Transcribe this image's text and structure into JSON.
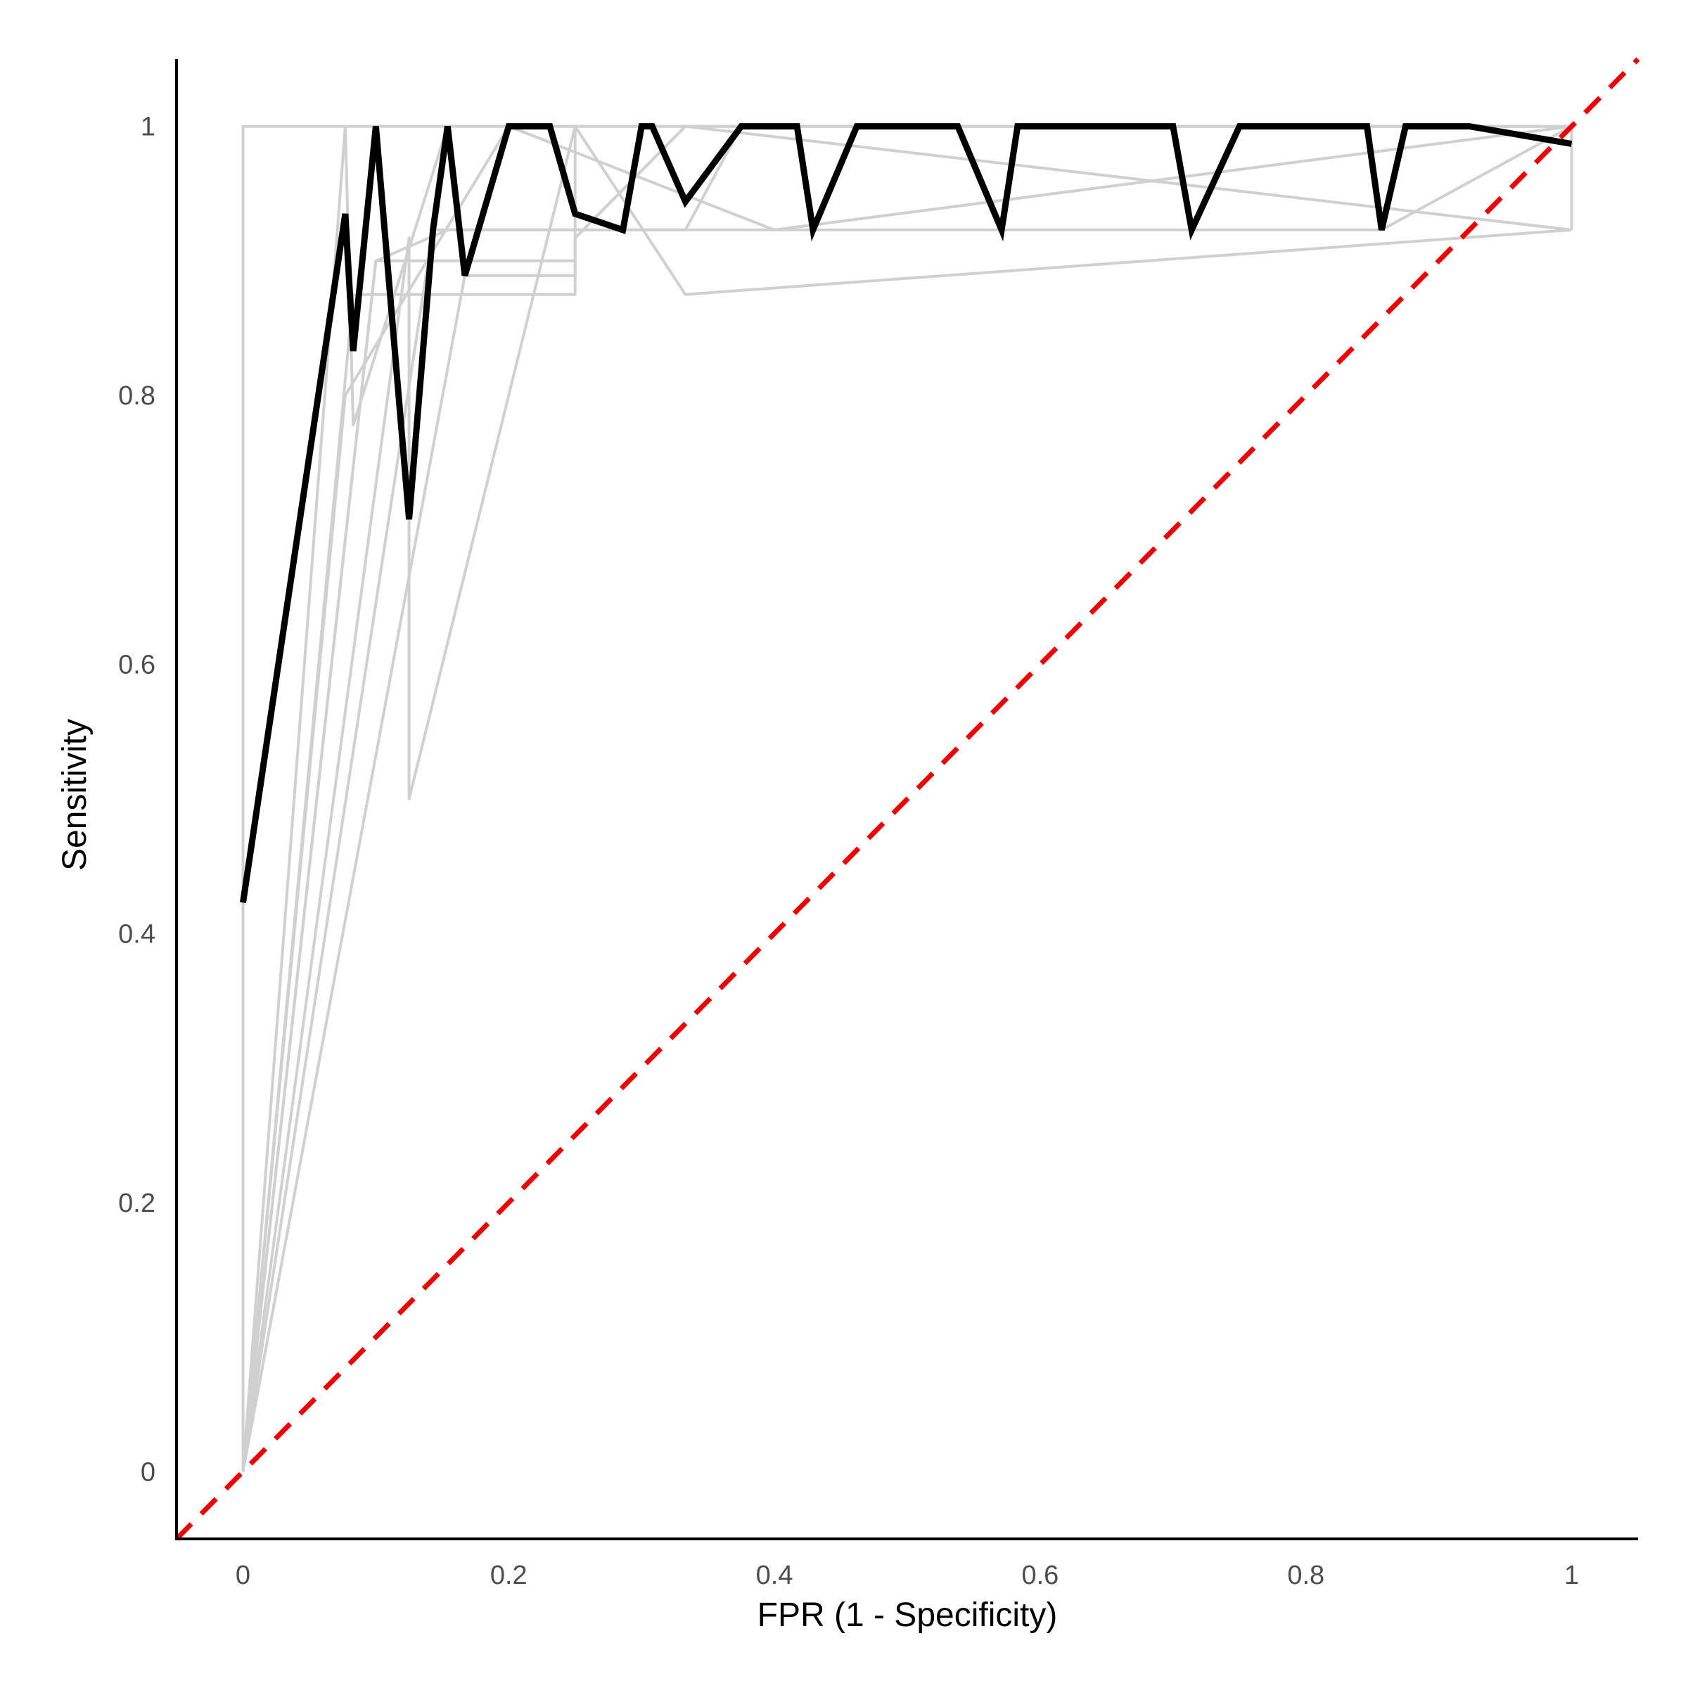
{
  "chart_data": {
    "type": "line",
    "title": "",
    "xlabel": "FPR (1 - Specificity)",
    "ylabel": "Sensitivity",
    "xlim": [
      -0.05,
      1.05
    ],
    "ylim": [
      -0.05,
      1.05
    ],
    "grid": false,
    "x_ticks": [
      0,
      0.2,
      0.4,
      0.6,
      0.8,
      1
    ],
    "x_tick_labels": [
      "0",
      "0.2",
      "0.4",
      "0.6",
      "0.8",
      "1"
    ],
    "y_ticks": [
      0,
      0.2,
      0.4,
      0.6,
      0.8,
      1
    ],
    "y_tick_labels": [
      "0",
      "0.2",
      "0.4",
      "0.6",
      "0.8",
      "1"
    ],
    "colors": {
      "mean_curve": "#000000",
      "fold_curves": "#d0d0d0",
      "reference": "#ee0000",
      "axes": "#000000"
    },
    "reference_line": {
      "x": [
        -0.05,
        1.05
      ],
      "y": [
        -0.05,
        1.05
      ],
      "style": "dashed"
    },
    "fold_series": [
      {
        "x": [
          0,
          0,
          0,
          1,
          1
        ],
        "y": [
          0,
          0.923,
          1,
          1,
          0.923
        ]
      },
      {
        "x": [
          0,
          0.077,
          0.083,
          0.154,
          1
        ],
        "y": [
          0,
          1,
          0.778,
          1,
          1
        ]
      },
      {
        "x": [
          0,
          0.083,
          0.25,
          0.25,
          0.333,
          1
        ],
        "y": [
          0,
          0.875,
          0.875,
          1,
          0.875,
          0.923
        ]
      },
      {
        "x": [
          0,
          0.125,
          0.125,
          0.25,
          1
        ],
        "y": [
          0,
          0.917,
          0.5,
          1,
          1
        ]
      },
      {
        "x": [
          0,
          0.1,
          0.25,
          0.25,
          0.333,
          1
        ],
        "y": [
          0,
          0.9,
          0.9,
          0.917,
          1,
          0.923
        ]
      },
      {
        "x": [
          0,
          0.143,
          0.857,
          1
        ],
        "y": [
          0,
          0.923,
          0.923,
          1
        ]
      },
      {
        "x": [
          0,
          0.167,
          0.25,
          0.25,
          0.333,
          1
        ],
        "y": [
          0,
          0.889,
          0.889,
          0.917,
          1,
          1
        ]
      },
      {
        "x": [
          0,
          0.1,
          0.154,
          0.333,
          0.375,
          1
        ],
        "y": [
          0,
          0.9,
          0.923,
          0.923,
          1,
          1
        ]
      },
      {
        "x": [
          0,
          0.077,
          0.2,
          0.4,
          1
        ],
        "y": [
          0,
          0.8,
          1,
          0.923,
          1
        ]
      }
    ],
    "series": [
      {
        "x": [
          0,
          0.077,
          0.083,
          0.1,
          0.125,
          0.143,
          0.154,
          0.167,
          0.2,
          0.231,
          0.25,
          0.286,
          0.3,
          0.308,
          0.333,
          0.375,
          0.417,
          0.429,
          0.462,
          0.538,
          0.571,
          0.583,
          0.7,
          0.714,
          0.75,
          0.846,
          0.857,
          0.875,
          0.923,
          1
        ],
        "y": [
          0.423,
          0.935,
          0.833,
          1,
          0.708,
          0.923,
          1,
          0.889,
          1,
          1,
          0.935,
          0.923,
          1,
          1,
          0.944,
          1,
          1,
          0.923,
          1,
          1,
          0.923,
          1,
          1,
          0.923,
          1,
          1,
          0.923,
          1,
          1,
          0.987
        ]
      }
    ]
  }
}
